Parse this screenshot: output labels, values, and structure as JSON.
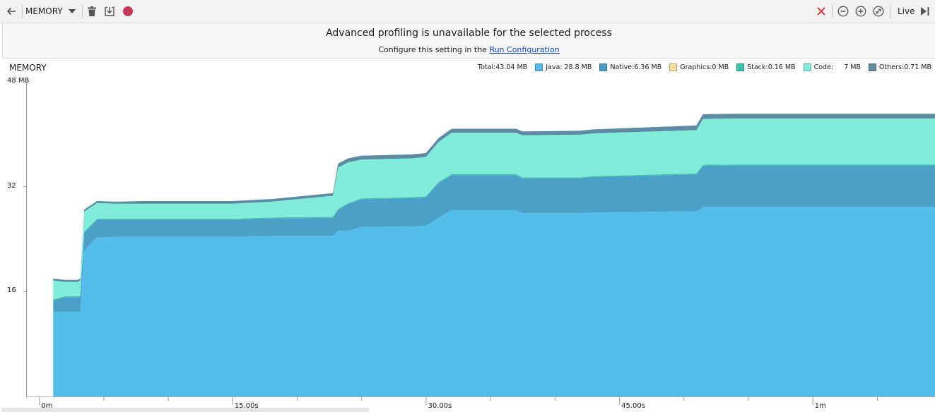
{
  "toolbar": {
    "profiler_label": "MEMORY",
    "live_label": "Live"
  },
  "banner": {
    "title": "Advanced profiling is unavailable for the selected process",
    "subtitle_prefix": "Configure this setting in the",
    "link_text": "Run Configuration"
  },
  "legend": {
    "total": "Total:43.04 MB",
    "items": [
      {
        "label": "Java:  28.8 MB",
        "color": "#55bdea"
      },
      {
        "label": "Native:6.36 MB",
        "color": "#4ba0c8"
      },
      {
        "label": "Graphics:0 MB",
        "color": "#f5dca0"
      },
      {
        "label": "Stack:0.16 MB",
        "color": "#3cc4a8"
      },
      {
        "label": "Code:     7 MB",
        "color": "#80ecd9"
      },
      {
        "label": "Others:0.71 MB",
        "color": "#5f8aa3"
      }
    ]
  },
  "chart_data": {
    "type": "area",
    "title": "MEMORY",
    "y_ticks": [
      "48 MB",
      "32",
      "16"
    ],
    "x_ticks": [
      "0m",
      "15.00s",
      "30.00s",
      "45.00s",
      "1m"
    ],
    "ylim": [
      0,
      48
    ],
    "xlim": [
      -1,
      69.5
    ],
    "series_order": [
      "Java",
      "Native",
      "Graphics",
      "Stack",
      "Code",
      "Others"
    ],
    "colors": {
      "Java": "#55bdea",
      "Native": "#4ba0c8",
      "Graphics": "#f5dca0",
      "Stack": "#3cc4a8",
      "Code": "#80ecd9",
      "Others": "#5f8aa3"
    },
    "samples": [
      {
        "t": 1.1,
        "Java": 12.9,
        "Native": 1.7,
        "Graphics": 0,
        "Stack": 0.15,
        "Code": 2.9,
        "Others": 0.3
      },
      {
        "t": 2.0,
        "Java": 12.9,
        "Native": 2.2,
        "Graphics": 0,
        "Stack": 0.15,
        "Code": 2.2,
        "Others": 0.3
      },
      {
        "t": 3.0,
        "Java": 12.9,
        "Native": 2.2,
        "Graphics": 0,
        "Stack": 0.15,
        "Code": 2.2,
        "Others": 0.3
      },
      {
        "t": 3.2,
        "Java": 12.9,
        "Native": 2.3,
        "Graphics": 0,
        "Stack": 0.15,
        "Code": 2.3,
        "Others": 0.3
      },
      {
        "t": 3.5,
        "Java": 22.2,
        "Native": 2.7,
        "Graphics": 0,
        "Stack": 0.15,
        "Code": 3.1,
        "Others": 0.3
      },
      {
        "t": 4.5,
        "Java": 24.2,
        "Native": 2.7,
        "Graphics": 0,
        "Stack": 0.15,
        "Code": 2.4,
        "Others": 0.3
      },
      {
        "t": 6.0,
        "Java": 24.3,
        "Native": 2.6,
        "Graphics": 0,
        "Stack": 0.15,
        "Code": 2.3,
        "Others": 0.3
      },
      {
        "t": 8.0,
        "Java": 24.3,
        "Native": 2.6,
        "Graphics": 0,
        "Stack": 0.15,
        "Code": 2.3,
        "Others": 0.4
      },
      {
        "t": 15.0,
        "Java": 24.3,
        "Native": 2.6,
        "Graphics": 0,
        "Stack": 0.15,
        "Code": 2.3,
        "Others": 0.4
      },
      {
        "t": 18.0,
        "Java": 24.4,
        "Native": 2.7,
        "Graphics": 0,
        "Stack": 0.15,
        "Code": 2.4,
        "Others": 0.4
      },
      {
        "t": 22.8,
        "Java": 24.4,
        "Native": 2.8,
        "Graphics": 0,
        "Stack": 0.15,
        "Code": 3.2,
        "Others": 0.4
      },
      {
        "t": 23.2,
        "Java": 25.2,
        "Native": 3.2,
        "Graphics": 0,
        "Stack": 0.15,
        "Code": 6.3,
        "Others": 0.6
      },
      {
        "t": 24.0,
        "Java": 25.2,
        "Native": 4.1,
        "Graphics": 0,
        "Stack": 0.15,
        "Code": 6.2,
        "Others": 0.6
      },
      {
        "t": 25.0,
        "Java": 25.8,
        "Native": 4.2,
        "Graphics": 0,
        "Stack": 0.15,
        "Code": 5.9,
        "Others": 0.6
      },
      {
        "t": 29.0,
        "Java": 25.9,
        "Native": 4.3,
        "Graphics": 0,
        "Stack": 0.15,
        "Code": 5.9,
        "Others": 0.6
      },
      {
        "t": 30.0,
        "Java": 26.0,
        "Native": 4.3,
        "Graphics": 0,
        "Stack": 0.15,
        "Code": 6.0,
        "Others": 0.6
      },
      {
        "t": 31.0,
        "Java": 27.2,
        "Native": 5.3,
        "Graphics": 0,
        "Stack": 0.15,
        "Code": 6.1,
        "Others": 0.6
      },
      {
        "t": 32.0,
        "Java": 28.4,
        "Native": 5.3,
        "Graphics": 0,
        "Stack": 0.15,
        "Code": 6.3,
        "Others": 0.6
      },
      {
        "t": 37.0,
        "Java": 28.4,
        "Native": 5.3,
        "Graphics": 0,
        "Stack": 0.15,
        "Code": 6.3,
        "Others": 0.6
      },
      {
        "t": 37.5,
        "Java": 27.9,
        "Native": 5.3,
        "Graphics": 0,
        "Stack": 0.15,
        "Code": 6.4,
        "Others": 0.6
      },
      {
        "t": 42.0,
        "Java": 27.9,
        "Native": 5.3,
        "Graphics": 0,
        "Stack": 0.15,
        "Code": 6.5,
        "Others": 0.6
      },
      {
        "t": 43.0,
        "Java": 28.0,
        "Native": 5.4,
        "Graphics": 0,
        "Stack": 0.15,
        "Code": 6.5,
        "Others": 0.6
      },
      {
        "t": 51.0,
        "Java": 28.2,
        "Native": 5.6,
        "Graphics": 0,
        "Stack": 0.15,
        "Code": 6.6,
        "Others": 0.7
      },
      {
        "t": 51.5,
        "Java": 28.8,
        "Native": 6.3,
        "Graphics": 0,
        "Stack": 0.16,
        "Code": 7.0,
        "Others": 0.7
      },
      {
        "t": 54.0,
        "Java": 28.8,
        "Native": 6.36,
        "Graphics": 0,
        "Stack": 0.16,
        "Code": 7.0,
        "Others": 0.71
      },
      {
        "t": 69.5,
        "Java": 28.8,
        "Native": 6.36,
        "Graphics": 0,
        "Stack": 0.16,
        "Code": 7.0,
        "Others": 0.71
      }
    ]
  }
}
